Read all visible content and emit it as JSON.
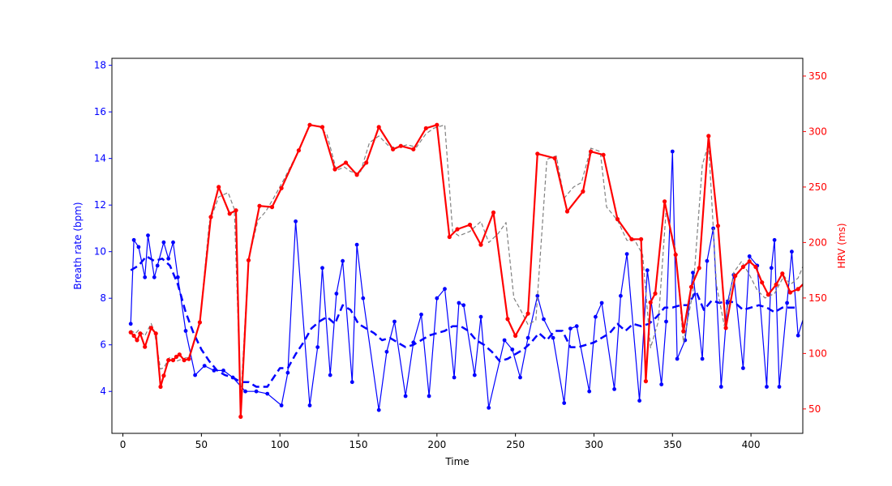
{
  "chart_data": {
    "type": "line",
    "title": "",
    "xlabel": "Time",
    "ylabel_left": "Breath rate (bpm)",
    "ylabel_right": "HRV (ms)",
    "xlim": [
      -7,
      433
    ],
    "ylim_left": [
      2.2,
      18.3
    ],
    "ylim_right": [
      28,
      366
    ],
    "x_ticks": [
      0,
      50,
      100,
      150,
      200,
      250,
      300,
      350,
      400
    ],
    "y_left_ticks": [
      4,
      6,
      8,
      10,
      12,
      14,
      16,
      18
    ],
    "y_right_ticks": [
      50,
      100,
      150,
      200,
      250,
      300,
      350
    ],
    "grid": false,
    "colors": {
      "breath": "#0000ff",
      "hrv": "#ff0000",
      "hrv_smooth": "#808080",
      "left_axis": "#0000ff",
      "right_axis": "#ff0000",
      "frame": "#000000"
    },
    "series": [
      {
        "axis": "left",
        "style": "solid-markers",
        "color": "#0000ff",
        "x": [
          5,
          7,
          10,
          14,
          16,
          20,
          22,
          26,
          29,
          32,
          35,
          40,
          46,
          52,
          58,
          64,
          70,
          78,
          85,
          92,
          101,
          105,
          110,
          119,
          124,
          127,
          132,
          136,
          140,
          146,
          149,
          153,
          163,
          168,
          173,
          180,
          185,
          190,
          195,
          200,
          205,
          211,
          214,
          217,
          224,
          228,
          233,
          243,
          248,
          253,
          258,
          264,
          268,
          274,
          281,
          285,
          289,
          297,
          301,
          305,
          313,
          317,
          321,
          329,
          334,
          343,
          346,
          350,
          353,
          358,
          363,
          369,
          372,
          376,
          381,
          385,
          389,
          395,
          399,
          404,
          410,
          413,
          415,
          418,
          423,
          426,
          430,
          435
        ],
        "y": [
          6.9,
          10.5,
          10.2,
          8.9,
          10.7,
          8.9,
          9.4,
          10.4,
          9.7,
          10.4,
          8.9,
          6.6,
          4.7,
          5.1,
          4.9,
          4.9,
          4.6,
          4.0,
          4.0,
          3.9,
          3.4,
          4.8,
          11.3,
          3.4,
          5.9,
          9.3,
          4.7,
          8.2,
          9.6,
          4.4,
          10.3,
          8.0,
          3.2,
          5.7,
          7.0,
          3.8,
          6.1,
          7.3,
          3.8,
          8.0,
          8.4,
          4.6,
          7.8,
          7.7,
          4.7,
          7.2,
          3.3,
          6.2,
          5.8,
          4.6,
          6.3,
          8.1,
          7.1,
          6.3,
          3.5,
          6.7,
          6.8,
          4.0,
          7.2,
          7.8,
          4.1,
          8.1,
          9.9,
          3.6,
          9.2,
          4.3,
          7.0,
          14.3,
          5.4,
          6.2,
          9.1,
          5.4,
          9.6,
          11.0,
          4.2,
          7.8,
          9.0,
          5.0,
          9.8,
          9.4,
          4.2,
          9.3,
          10.5,
          4.2,
          7.8,
          10.0,
          6.4,
          7.5
        ]
      },
      {
        "axis": "left",
        "style": "dashed",
        "color": "#0000ff",
        "x": [
          5,
          10,
          15,
          20,
          25,
          30,
          35,
          40,
          45,
          50,
          55,
          60,
          65,
          70,
          75,
          80,
          85,
          92,
          100,
          105,
          110,
          115,
          120,
          125,
          130,
          135,
          140,
          145,
          150,
          155,
          160,
          165,
          170,
          175,
          180,
          185,
          190,
          195,
          200,
          205,
          210,
          215,
          220,
          225,
          230,
          235,
          240,
          245,
          250,
          255,
          260,
          265,
          270,
          275,
          280,
          285,
          290,
          295,
          300,
          305,
          310,
          315,
          320,
          325,
          330,
          335,
          340,
          345,
          350,
          355,
          360,
          365,
          370,
          375,
          380,
          385,
          390,
          395,
          400,
          405,
          410,
          415,
          420,
          425,
          430
        ],
        "y": [
          9.2,
          9.4,
          9.8,
          9.6,
          9.7,
          9.4,
          8.6,
          7.4,
          6.5,
          5.8,
          5.3,
          4.9,
          4.7,
          4.6,
          4.4,
          4.4,
          4.2,
          4.2,
          5.0,
          5.0,
          5.6,
          6.1,
          6.7,
          7.0,
          7.2,
          6.9,
          7.7,
          7.5,
          6.9,
          6.7,
          6.5,
          6.2,
          6.3,
          6.1,
          5.9,
          6.0,
          6.2,
          6.4,
          6.5,
          6.6,
          6.8,
          6.8,
          6.6,
          6.2,
          6.0,
          5.7,
          5.3,
          5.4,
          5.6,
          5.8,
          6.1,
          6.5,
          6.2,
          6.6,
          6.6,
          5.9,
          5.9,
          6.0,
          6.1,
          6.3,
          6.5,
          6.9,
          6.6,
          6.9,
          6.8,
          6.9,
          7.2,
          7.6,
          7.6,
          7.7,
          7.7,
          8.3,
          7.5,
          7.9,
          7.8,
          7.9,
          7.8,
          7.5,
          7.6,
          7.7,
          7.6,
          7.4,
          7.6,
          7.6,
          7.6
        ]
      },
      {
        "axis": "right",
        "style": "dashed-thin",
        "color": "#808080",
        "x": [
          5,
          8,
          10,
          14,
          18,
          20,
          24,
          26,
          30,
          34,
          38,
          42,
          49,
          55,
          61,
          67,
          71,
          75,
          80,
          86,
          91,
          96,
          103,
          112,
          119,
          125,
          130,
          136,
          141,
          145,
          151,
          157,
          163,
          170,
          176,
          181,
          187,
          193,
          198,
          205,
          210,
          214,
          221,
          228,
          233,
          239,
          244,
          249,
          253,
          258,
          263,
          270,
          276,
          281,
          287,
          292,
          298,
          304,
          308,
          315,
          321,
          326,
          331,
          336,
          341,
          346,
          352,
          357,
          363,
          369,
          373,
          378,
          383,
          389,
          394,
          399,
          404,
          409,
          415,
          421,
          425,
          430,
          435
        ],
        "y": [
          121,
          118,
          121,
          116,
          127,
          120,
          86,
          87,
          97,
          93,
          95,
          97,
          128,
          218,
          241,
          245,
          230,
          58,
          185,
          220,
          228,
          240,
          258,
          283,
          306,
          305,
          297,
          265,
          268,
          264,
          262,
          290,
          296,
          286,
          286,
          288,
          286,
          298,
          303,
          306,
          210,
          206,
          210,
          219,
          200,
          208,
          218,
          150,
          140,
          126,
          130,
          275,
          278,
          240,
          250,
          254,
          285,
          282,
          232,
          220,
          202,
          202,
          189,
          105,
          129,
          230,
          193,
          110,
          155,
          270,
          289,
          162,
          125,
          173,
          183,
          171,
          157,
          150,
          154,
          170,
          162,
          168,
          185
        ]
      },
      {
        "axis": "right",
        "style": "solid-markers-thick",
        "color": "#ff0000",
        "x": [
          5,
          7,
          9,
          11,
          14,
          18,
          21,
          24,
          26,
          29,
          32,
          34,
          36,
          39,
          42,
          49,
          56,
          61,
          68,
          72,
          75,
          80,
          87,
          95,
          101,
          112,
          119,
          127,
          135,
          142,
          149,
          155,
          163,
          172,
          177,
          185,
          193,
          200,
          208,
          213,
          221,
          228,
          236,
          245,
          250,
          258,
          264,
          275,
          283,
          293,
          298,
          306,
          315,
          324,
          330,
          333,
          336,
          339,
          345,
          352,
          357,
          362,
          367,
          373,
          379,
          384,
          390,
          395,
          399,
          403,
          407,
          411,
          416,
          420,
          425,
          430,
          435
        ],
        "y": [
          119,
          116,
          112,
          118,
          106,
          123,
          118,
          70,
          80,
          94,
          94,
          97,
          99,
          94,
          95,
          128,
          223,
          250,
          226,
          229,
          43,
          184,
          233,
          232,
          249,
          283,
          306,
          304,
          266,
          272,
          261,
          272,
          304,
          284,
          287,
          284,
          303,
          306,
          205,
          212,
          216,
          198,
          227,
          131,
          116,
          136,
          280,
          276,
          228,
          246,
          282,
          279,
          221,
          203,
          203,
          75,
          146,
          154,
          237,
          189,
          120,
          160,
          177,
          296,
          215,
          123,
          170,
          178,
          183,
          178,
          164,
          153,
          162,
          172,
          155,
          158,
          165
        ]
      }
    ]
  }
}
